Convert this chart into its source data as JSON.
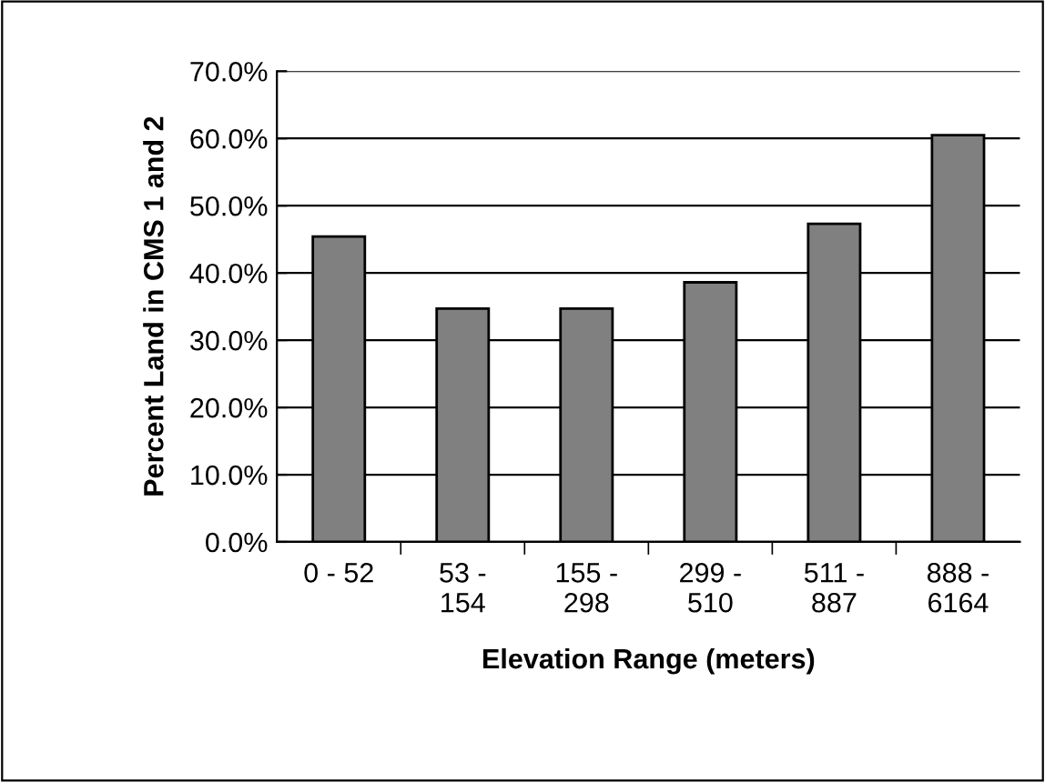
{
  "chart_data": {
    "type": "bar",
    "xlabel": "Elevation Range (meters)",
    "ylabel": "Percent Land in CMS 1 and 2",
    "categories": [
      "0 - 52",
      "53 -\n154",
      "155 -\n298",
      "299 -\n510",
      "511 -\n887",
      "888 -\n6164"
    ],
    "values": [
      45.4,
      34.7,
      34.7,
      38.6,
      47.3,
      60.5
    ],
    "color": "#808080",
    "ylim": [
      0,
      70
    ],
    "yticks": [
      {
        "value": 0,
        "label": "0.0%"
      },
      {
        "value": 10,
        "label": "10.0%"
      },
      {
        "value": 20,
        "label": "20.0%"
      },
      {
        "value": 30,
        "label": "30.0%"
      },
      {
        "value": 40,
        "label": "40.0%"
      },
      {
        "value": 50,
        "label": "50.0%"
      },
      {
        "value": 60,
        "label": "60.0%"
      },
      {
        "value": 70,
        "label": "70.0%"
      }
    ],
    "grid": "y",
    "legend": false
  }
}
